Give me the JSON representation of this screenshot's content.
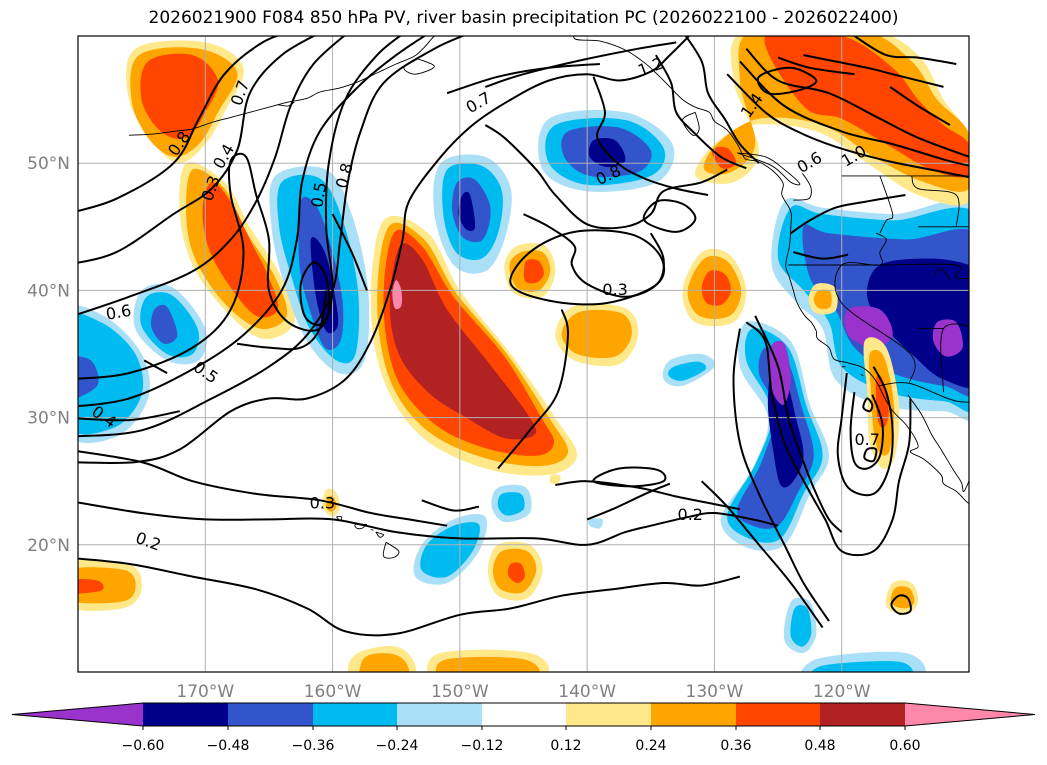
{
  "title": "2026021900 F084 850 hPa PV, river basin precipitation PC (2026022100 - 2026022400)",
  "map": {
    "lon_labels": [
      "170°W",
      "160°W",
      "150°W",
      "140°W",
      "130°W",
      "120°W"
    ],
    "lat_labels": [
      "50°N",
      "40°N",
      "30°N",
      "20°N"
    ],
    "grid": true
  },
  "contour_labels": [
    {
      "text": "0.7",
      "lon": -167.2,
      "lat": 55.5,
      "rot": -70
    },
    {
      "text": "0.8",
      "lon": -172.0,
      "lat": 51.5,
      "rot": -55
    },
    {
      "text": "0.4",
      "lon": -168.5,
      "lat": 50.5,
      "rot": -60
    },
    {
      "text": "0.3",
      "lon": -169.5,
      "lat": 48.0,
      "rot": -70
    },
    {
      "text": "0.5",
      "lon": -161.0,
      "lat": 47.5,
      "rot": -80
    },
    {
      "text": "0.8",
      "lon": -159.0,
      "lat": 49.0,
      "rot": -75
    },
    {
      "text": "0.7",
      "lon": -148.5,
      "lat": 54.7,
      "rot": -30
    },
    {
      "text": "1.2",
      "lon": -135.0,
      "lat": 57.5,
      "rot": -20
    },
    {
      "text": "1.4",
      "lon": -127.0,
      "lat": 54.5,
      "rot": -55
    },
    {
      "text": "0.6",
      "lon": -122.5,
      "lat": 50.0,
      "rot": -30
    },
    {
      "text": "1.0",
      "lon": -119.0,
      "lat": 50.5,
      "rot": -30
    },
    {
      "text": "0.8",
      "lon": -138.3,
      "lat": 49.0,
      "rot": -25
    },
    {
      "text": "0.3",
      "lon": -137.8,
      "lat": 40.0,
      "rot": 0
    },
    {
      "text": "0.6",
      "lon": -176.8,
      "lat": 38.2,
      "rot": -10
    },
    {
      "text": "0.5",
      "lon": -170.0,
      "lat": 33.5,
      "rot": 35
    },
    {
      "text": "0.4",
      "lon": -178.0,
      "lat": 30.0,
      "rot": 35
    },
    {
      "text": "0.3",
      "lon": -160.8,
      "lat": 23.2,
      "rot": 0
    },
    {
      "text": "0.2",
      "lon": -174.5,
      "lat": 20.2,
      "rot": 20
    },
    {
      "text": "0.2",
      "lon": -131.9,
      "lat": 22.3,
      "rot": 0
    },
    {
      "text": "0.7",
      "lon": -118.0,
      "lat": 28.2,
      "rot": 0
    }
  ],
  "colorbar": {
    "tick_labels": [
      "−0.60",
      "−0.48",
      "−0.36",
      "−0.24",
      "−0.12",
      "0.12",
      "0.24",
      "0.36",
      "0.48",
      "0.60"
    ],
    "colors": [
      "#9933cc",
      "#00008b",
      "#3355cc",
      "#00bbf0",
      "#aadff8",
      "#ffffff",
      "#ffe88a",
      "#ffa500",
      "#ff4500",
      "#b22222",
      "#ff88aa"
    ]
  }
}
